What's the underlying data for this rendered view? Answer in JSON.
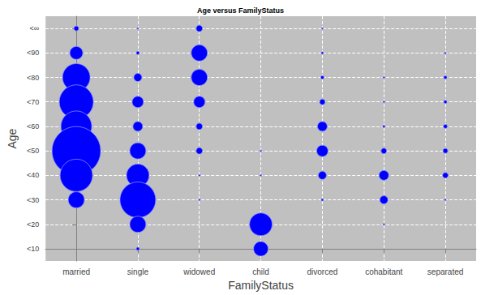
{
  "chart_data": {
    "type": "scatter",
    "title": "Age versus FamilyStatus",
    "x_label": "FamilyStatus",
    "y_label": "Age",
    "categories": [
      "married",
      "single",
      "widowed",
      "child",
      "divorced",
      "cohabitant",
      "separated"
    ],
    "y_categories": [
      "<10",
      "<20",
      "<30",
      "<40",
      "<50",
      "<60",
      "<70",
      "<80",
      "<90",
      "<∞"
    ],
    "color": "#0000ff",
    "marker": "circle",
    "grid": true,
    "points": [
      {
        "x": "married",
        "y": "<∞",
        "size": 9
      },
      {
        "x": "married",
        "y": "<90",
        "size": 64
      },
      {
        "x": "married",
        "y": "<80",
        "size": 289
      },
      {
        "x": "married",
        "y": "<70",
        "size": 441
      },
      {
        "x": "married",
        "y": "<60",
        "size": 361
      },
      {
        "x": "married",
        "y": "<50",
        "size": 900
      },
      {
        "x": "married",
        "y": "<40",
        "size": 400
      },
      {
        "x": "married",
        "y": "<30",
        "size": 100
      },
      {
        "x": "single",
        "y": "<∞",
        "size": 1
      },
      {
        "x": "single",
        "y": "<90",
        "size": 4
      },
      {
        "x": "single",
        "y": "<80",
        "size": 25
      },
      {
        "x": "single",
        "y": "<70",
        "size": 49
      },
      {
        "x": "single",
        "y": "<60",
        "size": 36
      },
      {
        "x": "single",
        "y": "<50",
        "size": 100
      },
      {
        "x": "single",
        "y": "<40",
        "size": 196
      },
      {
        "x": "single",
        "y": "<30",
        "size": 484
      },
      {
        "x": "single",
        "y": "<20",
        "size": 100
      },
      {
        "x": "single",
        "y": "<10",
        "size": 4
      },
      {
        "x": "widowed",
        "y": "<∞",
        "size": 16
      },
      {
        "x": "widowed",
        "y": "<90",
        "size": 100
      },
      {
        "x": "widowed",
        "y": "<80",
        "size": 100
      },
      {
        "x": "widowed",
        "y": "<70",
        "size": 49
      },
      {
        "x": "widowed",
        "y": "<60",
        "size": 16
      },
      {
        "x": "widowed",
        "y": "<50",
        "size": 16
      },
      {
        "x": "widowed",
        "y": "<40",
        "size": 1
      },
      {
        "x": "widowed",
        "y": "<30",
        "size": 1
      },
      {
        "x": "child",
        "y": "<50",
        "size": 1
      },
      {
        "x": "child",
        "y": "<40",
        "size": 1
      },
      {
        "x": "child",
        "y": "<20",
        "size": 196
      },
      {
        "x": "child",
        "y": "<10",
        "size": 81
      },
      {
        "x": "divorced",
        "y": "<∞",
        "size": 1
      },
      {
        "x": "divorced",
        "y": "<90",
        "size": 2
      },
      {
        "x": "divorced",
        "y": "<80",
        "size": 4
      },
      {
        "x": "divorced",
        "y": "<70",
        "size": 12
      },
      {
        "x": "divorced",
        "y": "<60",
        "size": 36
      },
      {
        "x": "divorced",
        "y": "<50",
        "size": 49
      },
      {
        "x": "divorced",
        "y": "<40",
        "size": 25
      },
      {
        "x": "divorced",
        "y": "<30",
        "size": 2
      },
      {
        "x": "cohabitant",
        "y": "<80",
        "size": 1
      },
      {
        "x": "cohabitant",
        "y": "<70",
        "size": 1
      },
      {
        "x": "cohabitant",
        "y": "<60",
        "size": 2
      },
      {
        "x": "cohabitant",
        "y": "<50",
        "size": 12
      },
      {
        "x": "cohabitant",
        "y": "<40",
        "size": 36
      },
      {
        "x": "cohabitant",
        "y": "<30",
        "size": 25
      },
      {
        "x": "cohabitant",
        "y": "<20",
        "size": 1
      },
      {
        "x": "separated",
        "y": "<90",
        "size": 1
      },
      {
        "x": "separated",
        "y": "<80",
        "size": 4
      },
      {
        "x": "separated",
        "y": "<70",
        "size": 4
      },
      {
        "x": "separated",
        "y": "<60",
        "size": 6
      },
      {
        "x": "separated",
        "y": "<50",
        "size": 9
      },
      {
        "x": "separated",
        "y": "<40",
        "size": 12
      },
      {
        "x": "separated",
        "y": "<30",
        "size": 1
      }
    ]
  }
}
